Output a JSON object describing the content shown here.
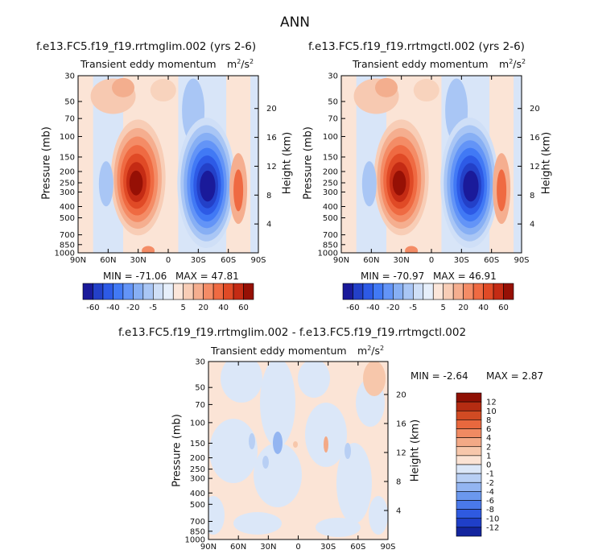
{
  "figure": {
    "title": "ANN",
    "chart_data": [
      {
        "type": "contour",
        "title": "f.e13.FC5.f19_f19.rrtmglim.002 (yrs 2-6)",
        "field": "Transient eddy momentum",
        "units_base": "m",
        "units_exp1": "2",
        "units_mid": "/s",
        "units_exp2": "2",
        "ylabel": "Pressure (mb)",
        "ylabel_right": "Height (km)",
        "x_ticks": [
          "90N",
          "60N",
          "30N",
          "0",
          "30S",
          "60S",
          "90S"
        ],
        "y_ticks": [
          "30",
          "50",
          "70",
          "100",
          "150",
          "200",
          "250",
          "300",
          "400",
          "500",
          "700",
          "850",
          "1000"
        ],
        "y_ticks_right": [
          "20",
          "16",
          "12",
          "8",
          "4"
        ],
        "min_label": "MIN = -71.06",
        "max_label": "MAX = 47.81",
        "min": -71.06,
        "max": 47.81,
        "colorbar_labels": [
          "-60",
          "-40",
          "-20",
          "-5",
          "5",
          "20",
          "40",
          "60"
        ],
        "features": [
          {
            "lat": 30,
            "p": 225,
            "value": 47.81,
            "sign": "positive"
          },
          {
            "lat": -38,
            "p": 250,
            "value": -71.06,
            "sign": "negative"
          },
          {
            "lat": -70,
            "p": 280,
            "value": 20,
            "sign": "positive"
          },
          {
            "lat": 62,
            "p": 260,
            "value": -10,
            "sign": "negative"
          }
        ]
      },
      {
        "type": "contour",
        "title": "f.e13.FC5.f19_f19.rrtmgctl.002 (yrs 2-6)",
        "field": "Transient eddy momentum",
        "units_base": "m",
        "units_exp1": "2",
        "units_mid": "/s",
        "units_exp2": "2",
        "ylabel": "Pressure (mb)",
        "ylabel_right": "Height (km)",
        "x_ticks": [
          "90N",
          "60N",
          "30N",
          "0",
          "30S",
          "60S",
          "90S"
        ],
        "y_ticks": [
          "30",
          "50",
          "70",
          "100",
          "150",
          "200",
          "250",
          "300",
          "400",
          "500",
          "700",
          "850",
          "1000"
        ],
        "y_ticks_right": [
          "20",
          "16",
          "12",
          "8",
          "4"
        ],
        "min_label": "MIN = -70.97",
        "max_label": "MAX = 46.91",
        "min": -70.97,
        "max": 46.91,
        "colorbar_labels": [
          "-60",
          "-40",
          "-20",
          "-5",
          "5",
          "20",
          "40",
          "60"
        ],
        "features": [
          {
            "lat": 30,
            "p": 225,
            "value": 46.91,
            "sign": "positive"
          },
          {
            "lat": -38,
            "p": 250,
            "value": -70.97,
            "sign": "negative"
          },
          {
            "lat": -70,
            "p": 280,
            "value": 20,
            "sign": "positive"
          },
          {
            "lat": 62,
            "p": 260,
            "value": -10,
            "sign": "negative"
          }
        ]
      },
      {
        "type": "contour",
        "title": "f.e13.FC5.f19_f19.rrtmglim.002 - f.e13.FC5.f19_f19.rrtmgctl.002",
        "field": "Transient eddy momentum",
        "units_base": "m",
        "units_exp1": "2",
        "units_mid": "/s",
        "units_exp2": "2",
        "ylabel": "Pressure (mb)",
        "ylabel_right": "Height (km)",
        "x_ticks": [
          "90N",
          "60N",
          "30N",
          "0",
          "30S",
          "60S",
          "90S"
        ],
        "y_ticks": [
          "30",
          "50",
          "70",
          "100",
          "150",
          "200",
          "250",
          "300",
          "400",
          "500",
          "700",
          "850",
          "1000"
        ],
        "y_ticks_right": [
          "20",
          "16",
          "12",
          "8",
          "4"
        ],
        "min_label": "MIN = -2.64",
        "max_label": "MAX = 2.87",
        "min": -2.64,
        "max": 2.87,
        "colorbar_labels": [
          "12",
          "10",
          "8",
          "6",
          "4",
          "2",
          "1",
          "0",
          "-1",
          "-2",
          "-4",
          "-6",
          "-8",
          "-10",
          "-12"
        ]
      }
    ]
  },
  "colors": {
    "blues": [
      "#1a1a9a",
      "#2340c8",
      "#2d5ae6",
      "#4179f5",
      "#6394f7",
      "#87aff4",
      "#a9c6f5",
      "#cfdff7",
      "#e6effb"
    ],
    "reds": [
      "#fbe6da",
      "#f8cdb6",
      "#f5ae8f",
      "#f48c66",
      "#ef6a42",
      "#e04a26",
      "#c42b14",
      "#961005"
    ],
    "diff_pos": [
      "#fbe3d4",
      "#f7c7ab",
      "#f3a986",
      "#f08a62",
      "#e8683e",
      "#d14b23",
      "#b52c12",
      "#8f1004"
    ],
    "diff_neg": [
      "#dbe7f8",
      "#b8cff4",
      "#93b5f1",
      "#6b98ee",
      "#4a79ea",
      "#2f5ae0",
      "#1f3fc8",
      "#14259e"
    ]
  }
}
